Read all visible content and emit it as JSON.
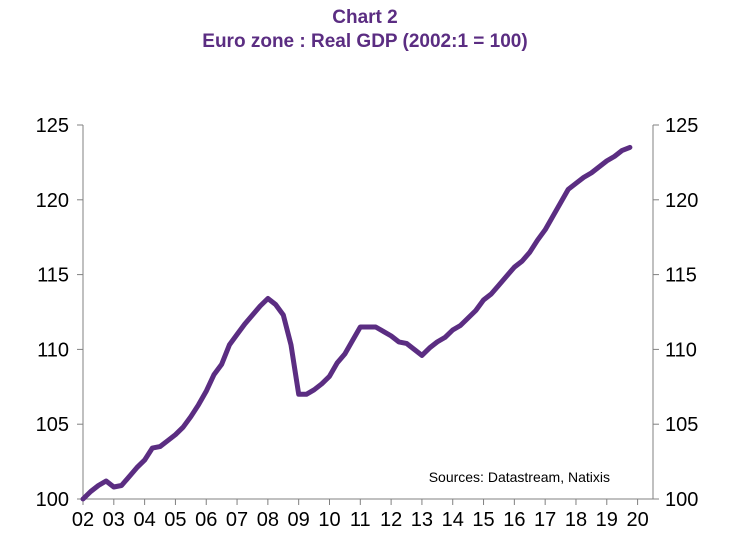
{
  "chart_data": {
    "type": "line",
    "title": "Chart 2",
    "subtitle": "Euro zone : Real GDP  (2002:1 = 100)",
    "source": "Sources:  Datastream,  Natixis",
    "xlabel": "",
    "ylabel": "",
    "ylim": [
      100,
      125
    ],
    "yticks": [
      "100",
      "105",
      "110",
      "115",
      "120",
      "125"
    ],
    "yticks_right": [
      "100",
      "105",
      "110",
      "115",
      "120",
      "125"
    ],
    "xlim": [
      2002,
      2020.5
    ],
    "xticks": [
      "02",
      "03",
      "04",
      "05",
      "06",
      "07",
      "08",
      "09",
      "10",
      "11",
      "12",
      "13",
      "14",
      "15",
      "16",
      "17",
      "18",
      "19",
      "20"
    ],
    "line_color": "#5b2d82",
    "series": [
      {
        "name": "Real GDP",
        "x": [
          2002.0,
          2002.25,
          2002.5,
          2002.75,
          2003.0,
          2003.25,
          2003.5,
          2003.75,
          2004.0,
          2004.25,
          2004.5,
          2004.75,
          2005.0,
          2005.25,
          2005.5,
          2005.75,
          2006.0,
          2006.25,
          2006.5,
          2006.75,
          2007.0,
          2007.25,
          2007.5,
          2007.75,
          2008.0,
          2008.25,
          2008.5,
          2008.75,
          2009.0,
          2009.25,
          2009.5,
          2009.75,
          2010.0,
          2010.25,
          2010.5,
          2010.75,
          2011.0,
          2011.25,
          2011.5,
          2011.75,
          2012.0,
          2012.25,
          2012.5,
          2012.75,
          2013.0,
          2013.25,
          2013.5,
          2013.75,
          2014.0,
          2014.25,
          2014.5,
          2014.75,
          2015.0,
          2015.25,
          2015.5,
          2015.75,
          2016.0,
          2016.25,
          2016.5,
          2016.75,
          2017.0,
          2017.25,
          2017.5,
          2017.75,
          2018.0,
          2018.25,
          2018.5,
          2018.75,
          2019.0,
          2019.25,
          2019.5,
          2019.75
        ],
        "values": [
          100.0,
          100.5,
          100.9,
          101.2,
          100.8,
          100.9,
          101.5,
          102.1,
          102.6,
          103.4,
          103.5,
          103.9,
          104.3,
          104.8,
          105.5,
          106.3,
          107.2,
          108.3,
          109.0,
          110.3,
          111.0,
          111.7,
          112.3,
          112.9,
          113.4,
          113.0,
          112.3,
          110.3,
          107.0,
          107.0,
          107.3,
          107.7,
          108.2,
          109.1,
          109.7,
          110.6,
          111.5,
          111.5,
          111.5,
          111.2,
          110.9,
          110.5,
          110.4,
          110.0,
          109.6,
          110.1,
          110.5,
          110.8,
          111.3,
          111.6,
          112.1,
          112.6,
          113.3,
          113.7,
          114.3,
          114.9,
          115.5,
          115.9,
          116.5,
          117.3,
          118.0,
          118.9,
          119.8,
          120.7,
          121.1,
          121.5,
          121.8,
          122.2,
          122.6,
          122.9,
          123.3,
          123.5
        ]
      }
    ]
  }
}
